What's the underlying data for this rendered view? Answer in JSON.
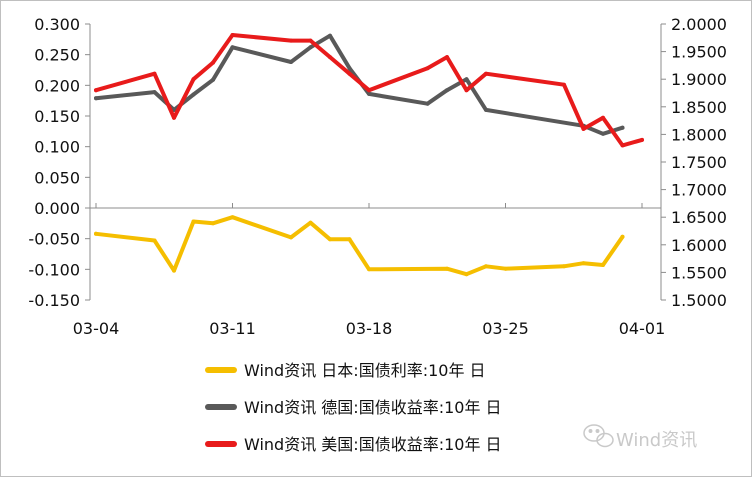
{
  "chart_data": {
    "type": "line",
    "title": "",
    "x_tick_labels": [
      "03-04",
      "03-11",
      "03-18",
      "03-25",
      "04-01"
    ],
    "x_tick_days": [
      0,
      7,
      14,
      21,
      28
    ],
    "y_left": {
      "ylim": [
        -0.15,
        0.3
      ],
      "tick_labels": [
        "0.300",
        "0.250",
        "0.200",
        "0.150",
        "0.100",
        "0.050",
        "0.000",
        "-0.050",
        "-0.100",
        "-0.150"
      ]
    },
    "y_right": {
      "ylim": [
        1.5,
        2.0
      ],
      "tick_labels": [
        "2.0000",
        "1.9500",
        "1.9000",
        "1.8500",
        "1.8000",
        "1.7500",
        "1.7000",
        "1.6500",
        "1.6000",
        "1.5500",
        "1.5000"
      ]
    },
    "grid": false,
    "legend_position": "bottom",
    "series": [
      {
        "name": "Wind资讯 日本:国债利率:10年 日",
        "axis": "left",
        "color": "#F5BE00",
        "points": [
          {
            "x": "03-04",
            "y": -0.042
          },
          {
            "x": "03-07",
            "y": -0.053
          },
          {
            "x": "03-08",
            "y": -0.102
          },
          {
            "x": "03-09",
            "y": -0.022
          },
          {
            "x": "03-10",
            "y": -0.025
          },
          {
            "x": "03-11",
            "y": -0.015
          },
          {
            "x": "03-14",
            "y": -0.048
          },
          {
            "x": "03-15",
            "y": -0.024
          },
          {
            "x": "03-16",
            "y": -0.051
          },
          {
            "x": "03-17",
            "y": -0.051
          },
          {
            "x": "03-18",
            "y": -0.1
          },
          {
            "x": "03-22",
            "y": -0.099
          },
          {
            "x": "03-23",
            "y": -0.108
          },
          {
            "x": "03-24",
            "y": -0.095
          },
          {
            "x": "03-25",
            "y": -0.099
          },
          {
            "x": "03-28",
            "y": -0.095
          },
          {
            "x": "03-29",
            "y": -0.09
          },
          {
            "x": "03-30",
            "y": -0.093
          },
          {
            "x": "03-31",
            "y": -0.047
          }
        ]
      },
      {
        "name": "Wind资讯 德国:国债收益率:10年 日",
        "axis": "left",
        "color": "#595959",
        "points": [
          {
            "x": "03-04",
            "y": 0.179
          },
          {
            "x": "03-07",
            "y": 0.189
          },
          {
            "x": "03-08",
            "y": 0.16
          },
          {
            "x": "03-09",
            "y": 0.185
          },
          {
            "x": "03-10",
            "y": 0.209
          },
          {
            "x": "03-11",
            "y": 0.262
          },
          {
            "x": "03-14",
            "y": 0.238
          },
          {
            "x": "03-15",
            "y": 0.262
          },
          {
            "x": "03-16",
            "y": 0.281
          },
          {
            "x": "03-17",
            "y": 0.228
          },
          {
            "x": "03-18",
            "y": 0.186
          },
          {
            "x": "03-21",
            "y": 0.17
          },
          {
            "x": "03-22",
            "y": 0.192
          },
          {
            "x": "03-23",
            "y": 0.21
          },
          {
            "x": "03-24",
            "y": 0.16
          },
          {
            "x": "03-29",
            "y": 0.134
          },
          {
            "x": "03-30",
            "y": 0.121
          },
          {
            "x": "03-31",
            "y": 0.131
          }
        ]
      },
      {
        "name": "Wind资讯 美国:国债收益率:10年 日",
        "axis": "right",
        "color": "#E81B1B",
        "points": [
          {
            "x": "03-04",
            "y": 1.88
          },
          {
            "x": "03-07",
            "y": 1.91
          },
          {
            "x": "03-08",
            "y": 1.83
          },
          {
            "x": "03-09",
            "y": 1.9
          },
          {
            "x": "03-10",
            "y": 1.93
          },
          {
            "x": "03-11",
            "y": 1.98
          },
          {
            "x": "03-14",
            "y": 1.97
          },
          {
            "x": "03-15",
            "y": 1.97
          },
          {
            "x": "03-16",
            "y": 1.94
          },
          {
            "x": "03-17",
            "y": 1.91
          },
          {
            "x": "03-18",
            "y": 1.88
          },
          {
            "x": "03-21",
            "y": 1.92
          },
          {
            "x": "03-22",
            "y": 1.94
          },
          {
            "x": "03-23",
            "y": 1.88
          },
          {
            "x": "03-24",
            "y": 1.91
          },
          {
            "x": "03-28",
            "y": 1.89
          },
          {
            "x": "03-29",
            "y": 1.81
          },
          {
            "x": "03-30",
            "y": 1.83
          },
          {
            "x": "03-31",
            "y": 1.78
          },
          {
            "x": "04-01",
            "y": 1.79
          }
        ]
      }
    ]
  },
  "watermark": {
    "text": "Wind资讯",
    "icon": "wechat-icon",
    "color": "#c9c9c9"
  }
}
